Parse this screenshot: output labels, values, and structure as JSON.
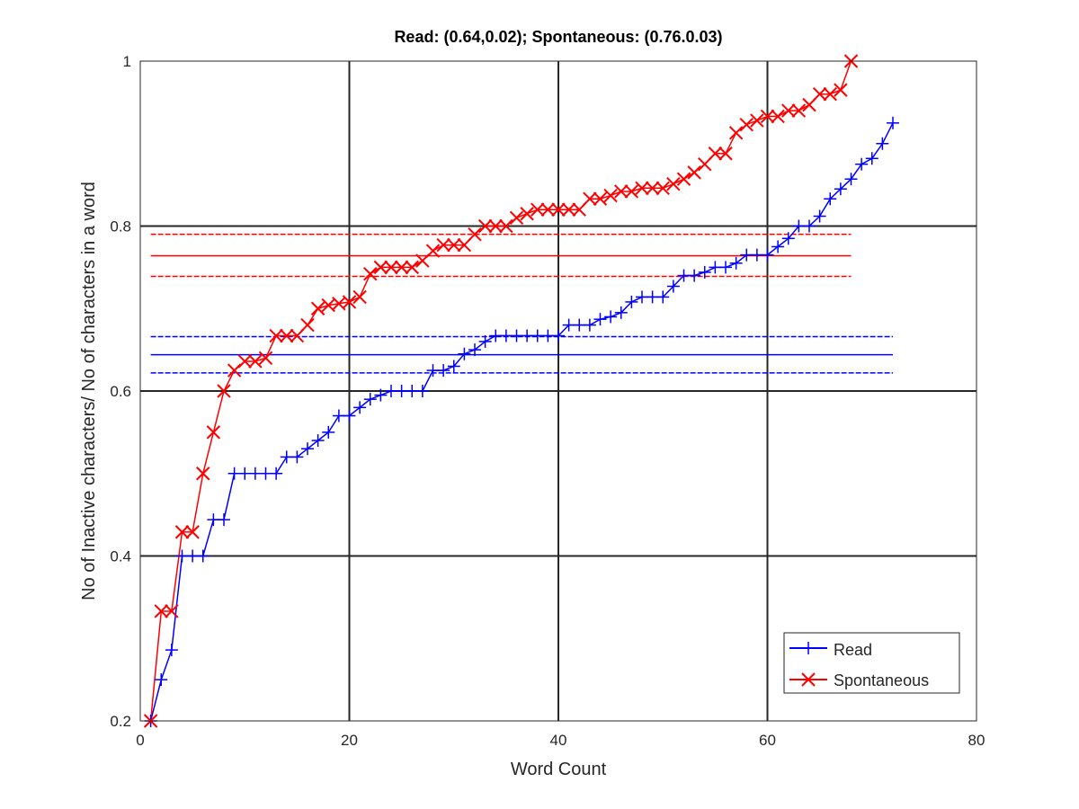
{
  "chart_data": {
    "type": "line",
    "title": "Read: (0.64,0.02); Spontaneous: (0.76.0.03)",
    "xlabel": "Word Count",
    "ylabel": "No of Inactive characters/ No of characters in a word",
    "xlim": [
      0,
      80
    ],
    "ylim": [
      0.2,
      1
    ],
    "xticks": [
      0,
      20,
      40,
      60,
      80
    ],
    "yticks": [
      0.2,
      0.4,
      0.6,
      0.8,
      1
    ],
    "xtick_labels": [
      "0",
      "20",
      "40",
      "60",
      "80"
    ],
    "ytick_labels": [
      "0.2",
      "0.4",
      "0.6",
      "0.8",
      "1"
    ],
    "grid": true,
    "legend_position": "bottom-right",
    "series": [
      {
        "name": "Read",
        "color": "#0000ff",
        "marker": "plus",
        "x": [
          1,
          2,
          3,
          4,
          5,
          6,
          7,
          8,
          9,
          10,
          11,
          12,
          13,
          14,
          15,
          16,
          17,
          18,
          19,
          20,
          21,
          22,
          23,
          24,
          25,
          26,
          27,
          28,
          29,
          30,
          31,
          32,
          33,
          34,
          35,
          36,
          37,
          38,
          39,
          40,
          41,
          42,
          43,
          44,
          45,
          46,
          47,
          48,
          49,
          50,
          51,
          52,
          53,
          54,
          55,
          56,
          57,
          58,
          59,
          60,
          61,
          62,
          63,
          64,
          65,
          66,
          67,
          68,
          69,
          70,
          71,
          72
        ],
        "values": [
          0.2,
          0.25,
          0.286,
          0.4,
          0.4,
          0.4,
          0.444,
          0.444,
          0.5,
          0.5,
          0.5,
          0.5,
          0.5,
          0.52,
          0.52,
          0.53,
          0.54,
          0.55,
          0.57,
          0.57,
          0.58,
          0.59,
          0.595,
          0.6,
          0.6,
          0.6,
          0.6,
          0.625,
          0.625,
          0.63,
          0.645,
          0.65,
          0.66,
          0.667,
          0.667,
          0.667,
          0.667,
          0.667,
          0.667,
          0.667,
          0.68,
          0.68,
          0.68,
          0.687,
          0.69,
          0.695,
          0.708,
          0.714,
          0.714,
          0.714,
          0.727,
          0.74,
          0.74,
          0.744,
          0.75,
          0.75,
          0.755,
          0.765,
          0.765,
          0.765,
          0.775,
          0.785,
          0.8,
          0.8,
          0.812,
          0.833,
          0.845,
          0.857,
          0.875,
          0.882,
          0.9,
          0.925
        ]
      },
      {
        "name": "Spontaneous",
        "color": "#ff0000",
        "marker": "x",
        "x": [
          1,
          2,
          3,
          4,
          5,
          6,
          7,
          8,
          9,
          10,
          11,
          12,
          13,
          14,
          15,
          16,
          17,
          18,
          19,
          20,
          21,
          22,
          23,
          24,
          25,
          26,
          27,
          28,
          29,
          30,
          31,
          32,
          33,
          34,
          35,
          36,
          37,
          38,
          39,
          40,
          41,
          42,
          43,
          44,
          45,
          46,
          47,
          48,
          49,
          50,
          51,
          52,
          53,
          54,
          55,
          56,
          57,
          58,
          59,
          60,
          61,
          62,
          63,
          64,
          65,
          66,
          67,
          68
        ],
        "values": [
          0.2,
          0.333,
          0.333,
          0.429,
          0.429,
          0.5,
          0.55,
          0.6,
          0.625,
          0.636,
          0.636,
          0.64,
          0.667,
          0.667,
          0.667,
          0.68,
          0.7,
          0.704,
          0.706,
          0.708,
          0.714,
          0.742,
          0.75,
          0.75,
          0.75,
          0.75,
          0.758,
          0.77,
          0.777,
          0.777,
          0.777,
          0.79,
          0.8,
          0.8,
          0.8,
          0.81,
          0.815,
          0.82,
          0.82,
          0.82,
          0.82,
          0.82,
          0.833,
          0.833,
          0.837,
          0.842,
          0.842,
          0.846,
          0.846,
          0.846,
          0.851,
          0.857,
          0.865,
          0.875,
          0.888,
          0.888,
          0.913,
          0.923,
          0.928,
          0.933,
          0.933,
          0.94,
          0.94,
          0.947,
          0.96,
          0.96,
          0.965,
          1.0
        ]
      }
    ],
    "reference_lines": [
      {
        "series": "Read",
        "kind": "mean",
        "value": 0.644,
        "x_range": [
          1,
          72
        ],
        "style": "solid",
        "color": "#0000ff"
      },
      {
        "series": "Read",
        "kind": "mean+std",
        "value": 0.666,
        "x_range": [
          1,
          72
        ],
        "style": "dashed",
        "color": "#0000ff"
      },
      {
        "series": "Read",
        "kind": "mean-std",
        "value": 0.622,
        "x_range": [
          1,
          72
        ],
        "style": "dashed",
        "color": "#0000ff"
      },
      {
        "series": "Spontaneous",
        "kind": "mean",
        "value": 0.764,
        "x_range": [
          1,
          68
        ],
        "style": "solid",
        "color": "#ff0000"
      },
      {
        "series": "Spontaneous",
        "kind": "mean+std",
        "value": 0.79,
        "x_range": [
          1,
          68
        ],
        "style": "dashed",
        "color": "#ff0000"
      },
      {
        "series": "Spontaneous",
        "kind": "mean-std",
        "value": 0.739,
        "x_range": [
          1,
          68
        ],
        "style": "dashed",
        "color": "#ff0000"
      }
    ]
  }
}
